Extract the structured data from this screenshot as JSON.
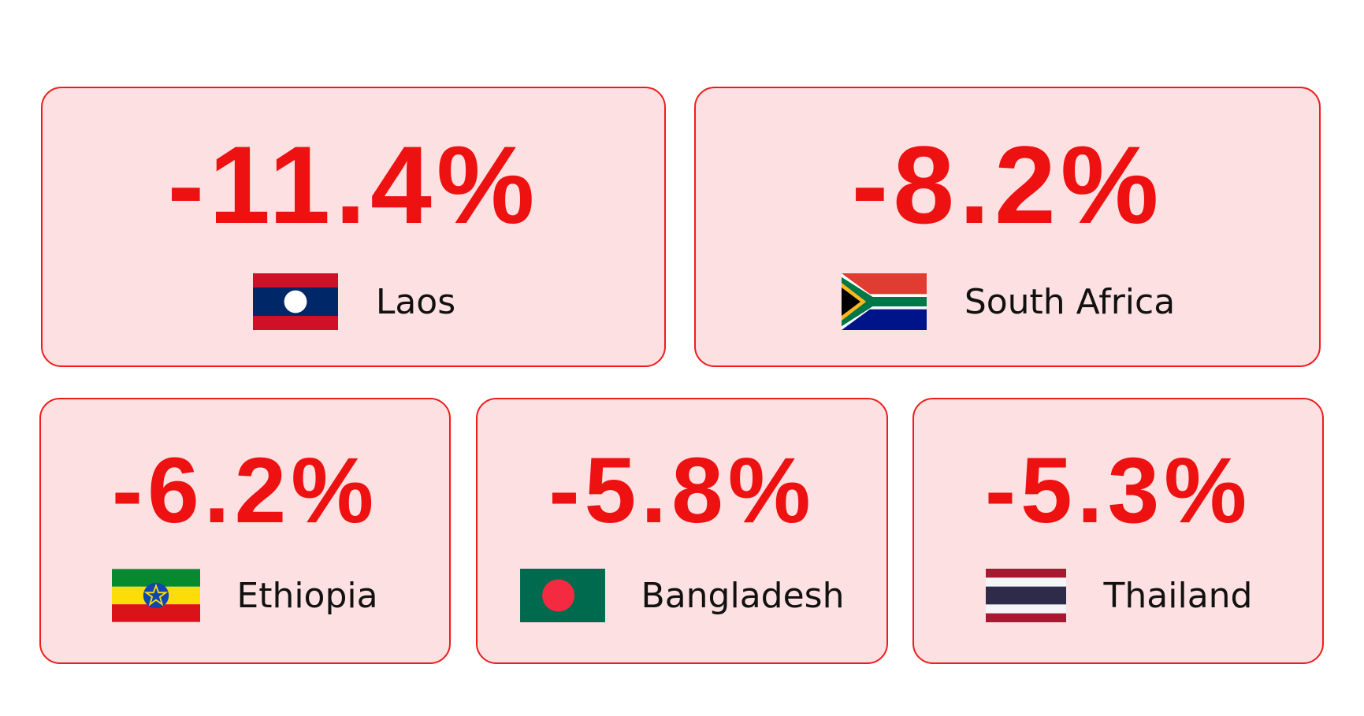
{
  "cards": [
    {
      "value": "-11.4%",
      "country": "Laos"
    },
    {
      "value": "-8.2%",
      "country": "South Africa"
    },
    {
      "value": "-6.2%",
      "country": "Ethiopia"
    },
    {
      "value": "-5.8%",
      "country": "Bangladesh"
    },
    {
      "value": "-5.3%",
      "country": "Thailand"
    }
  ]
}
